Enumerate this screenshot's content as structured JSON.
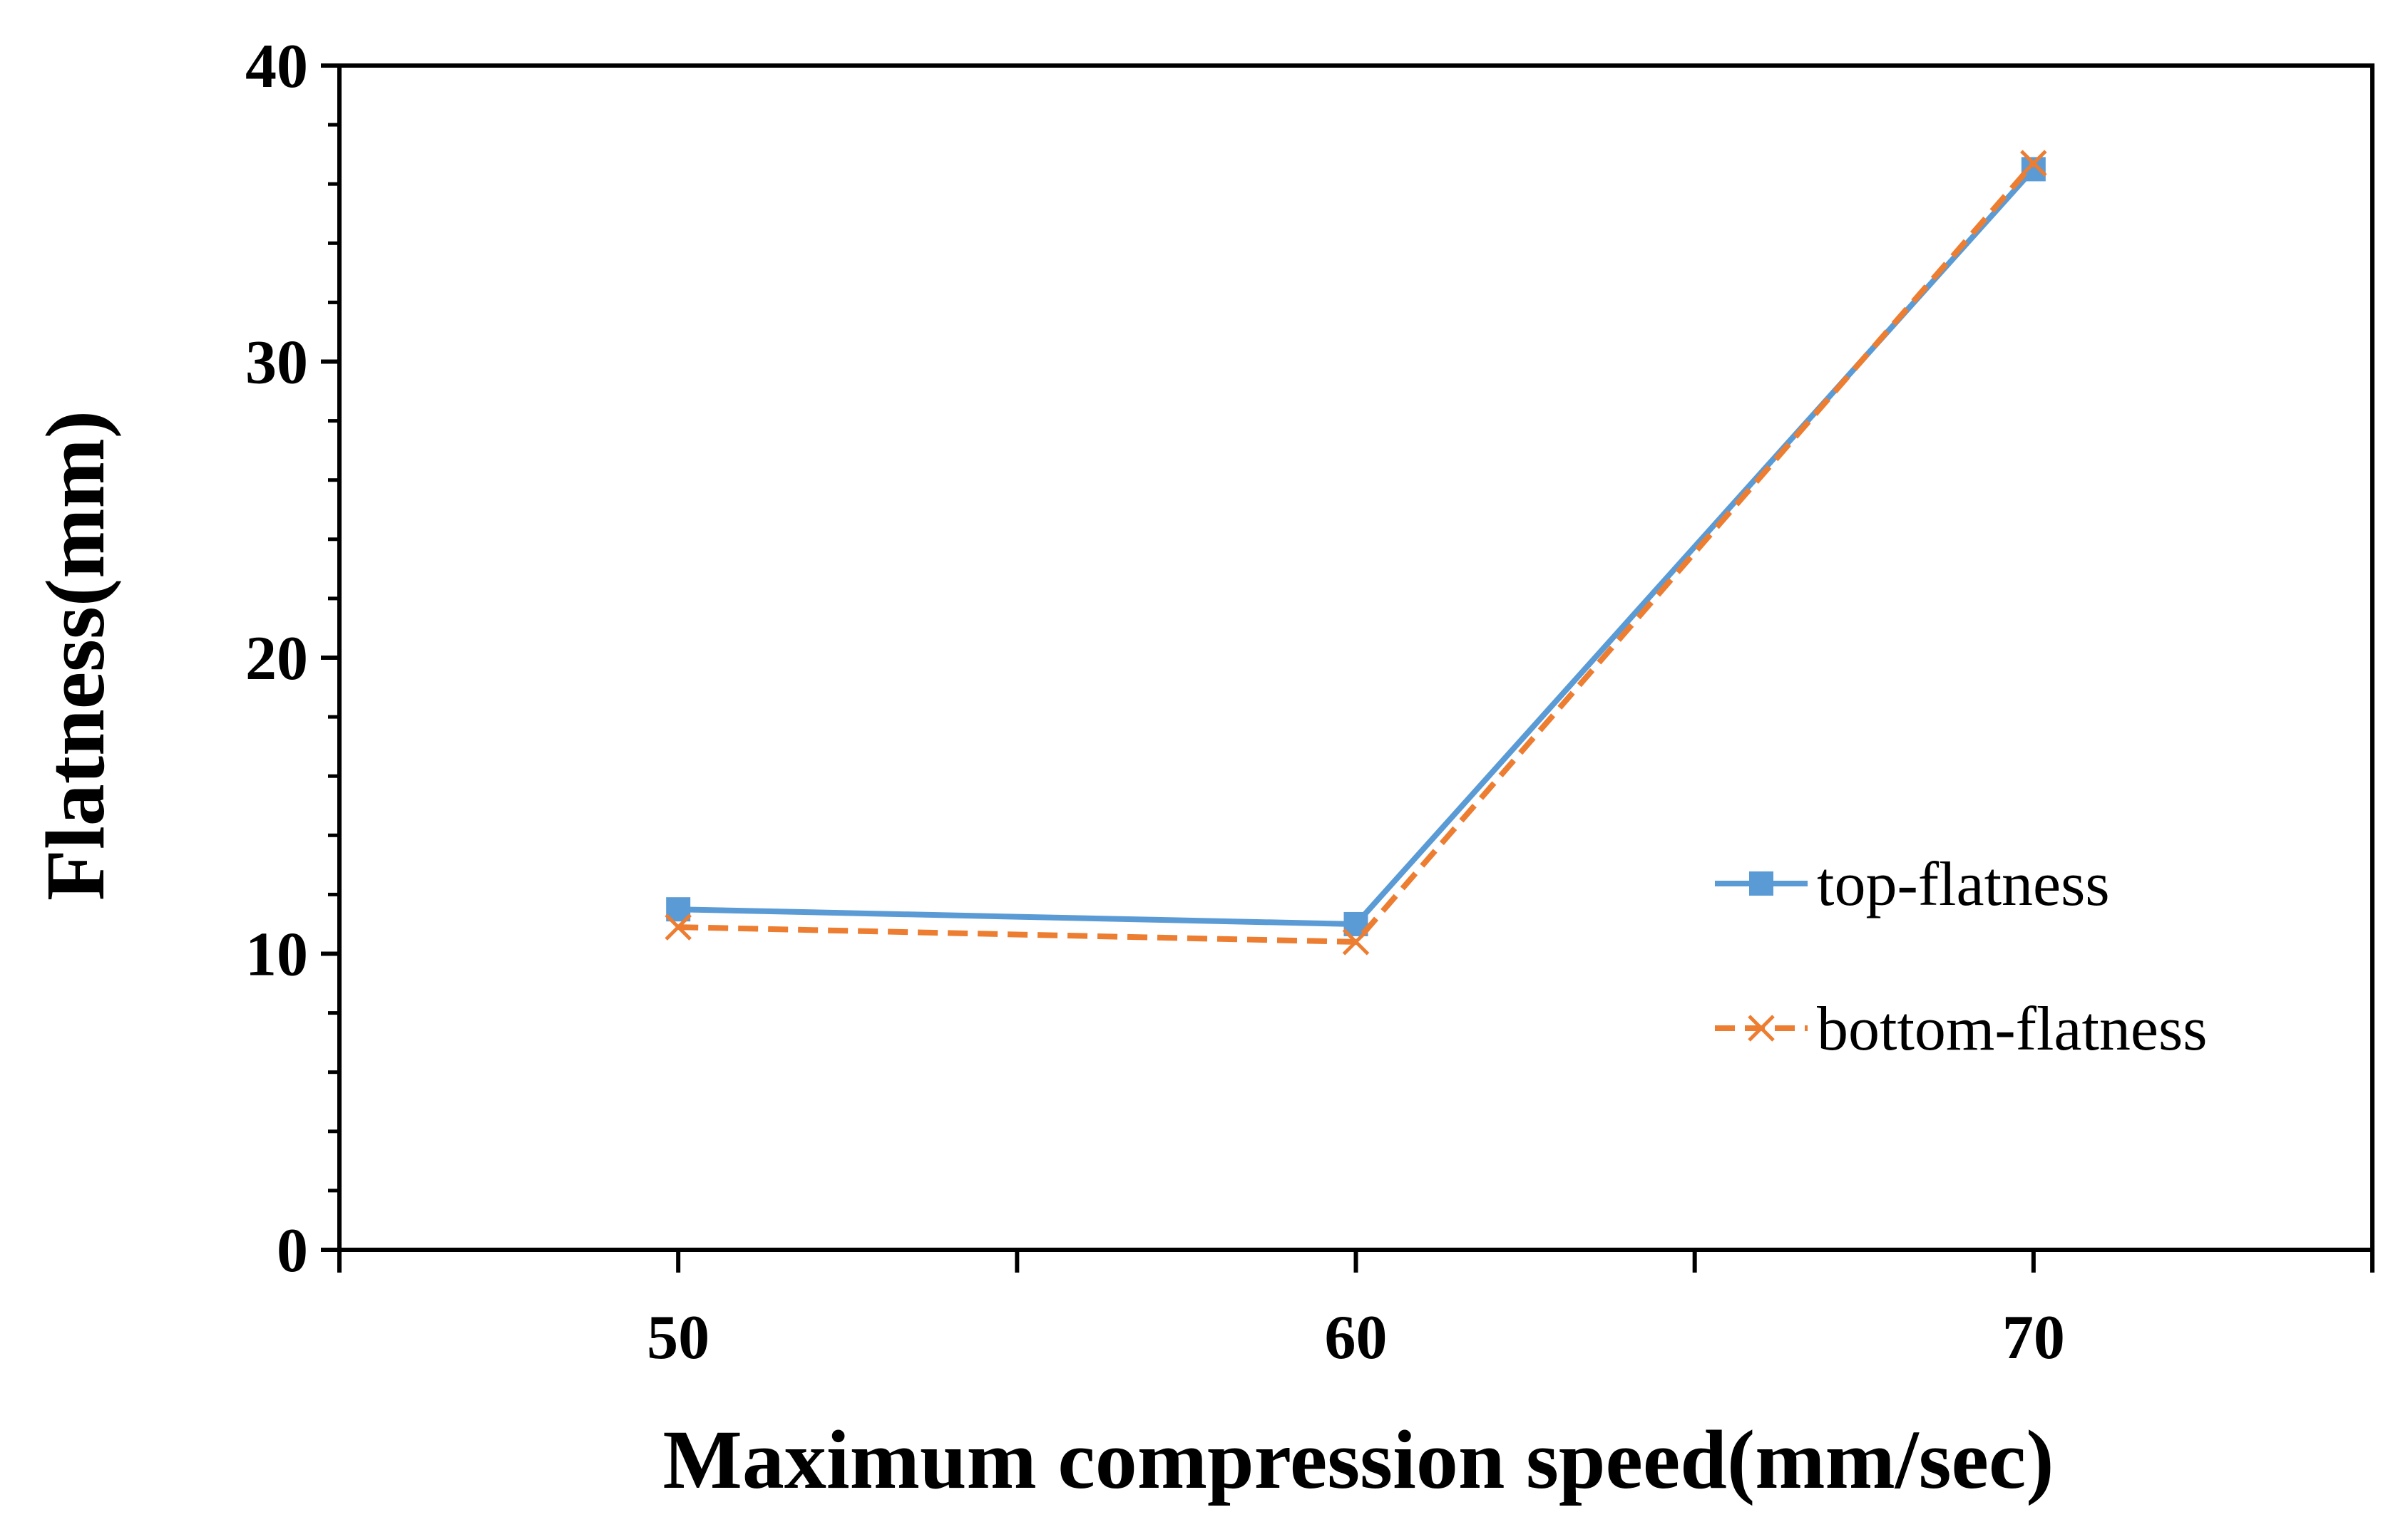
{
  "chart_data": {
    "type": "line",
    "title": "",
    "xlabel": "Maximum compression speed(mm/sec)",
    "ylabel": "Flatness(mm)",
    "categories": [
      "50",
      "60",
      "70"
    ],
    "x": [
      50,
      60,
      70
    ],
    "xlim": [
      45,
      75
    ],
    "ylim": [
      0,
      40
    ],
    "y_ticks": [
      0,
      10,
      20,
      30,
      40
    ],
    "y_minor_step": 2,
    "x_major_tick_step": 5,
    "grid": false,
    "legend_position": "right",
    "series": [
      {
        "name": "top-flatness",
        "values": [
          11.5,
          11.0,
          36.5
        ],
        "color": "#5b9bd5",
        "style": "solid",
        "marker": "square"
      },
      {
        "name": "bottom-flatness",
        "values": [
          10.9,
          10.4,
          36.7
        ],
        "color": "#ed7d31",
        "style": "dashed",
        "marker": "x"
      }
    ]
  }
}
